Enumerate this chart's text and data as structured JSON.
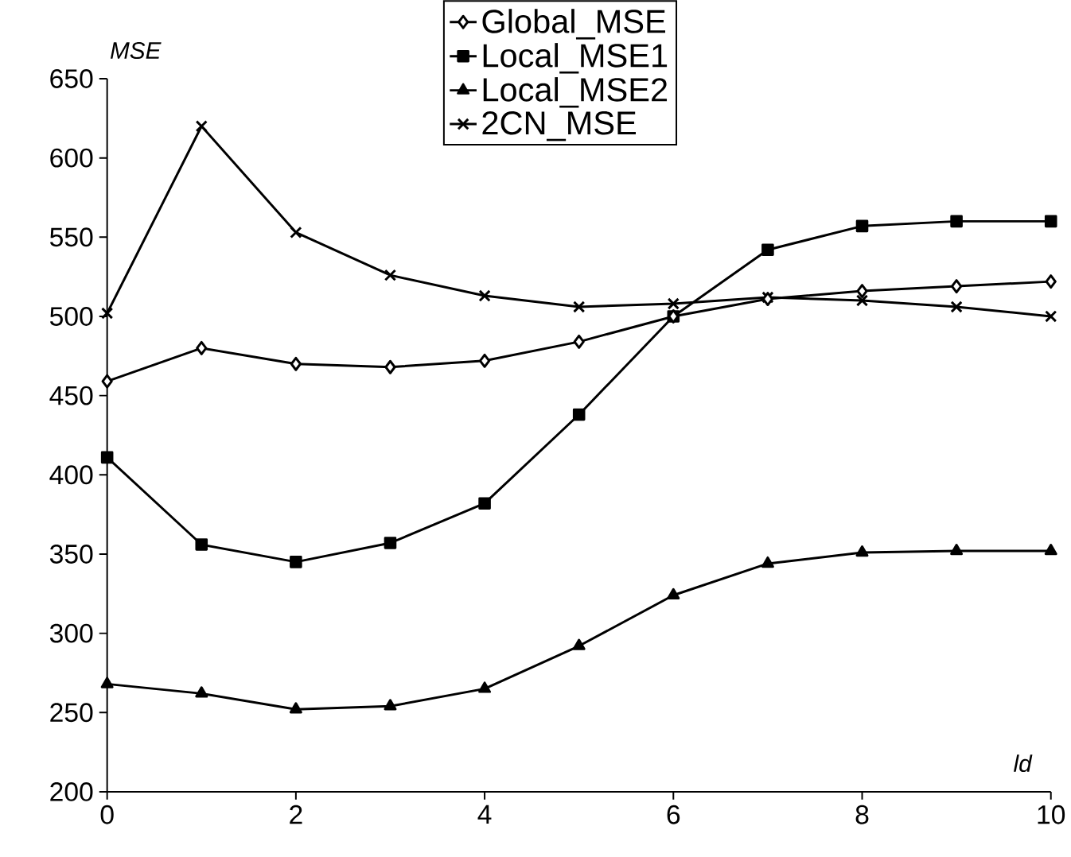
{
  "chart_data": {
    "type": "line",
    "xlabel": "ld",
    "ylabel": "MSE",
    "x": [
      0,
      1,
      2,
      3,
      4,
      5,
      6,
      7,
      8,
      9,
      10
    ],
    "xlim": [
      0,
      10
    ],
    "xticks": [
      0,
      2,
      4,
      6,
      8,
      10
    ],
    "ylim": [
      200,
      650
    ],
    "yticks": [
      200,
      250,
      300,
      350,
      400,
      450,
      500,
      550,
      600,
      650
    ],
    "grid": false,
    "legend": "top",
    "line_style": "solid",
    "series": [
      {
        "name": "Global_MSE",
        "color": "#000000",
        "marker": "diamond",
        "values": [
          459,
          480,
          470,
          468,
          472,
          484,
          500,
          511,
          516,
          519,
          522
        ]
      },
      {
        "name": "Local_MSE1",
        "color": "#000000",
        "marker": "square",
        "values": [
          411,
          356,
          345,
          357,
          382,
          438,
          500,
          542,
          557,
          560,
          560
        ]
      },
      {
        "name": "Local_MSE2",
        "color": "#000000",
        "marker": "triangle",
        "values": [
          268,
          262,
          252,
          254,
          265,
          292,
          324,
          344,
          351,
          352,
          352
        ]
      },
      {
        "name": "2CN_MSE",
        "color": "#000000",
        "marker": "cross",
        "values": [
          502,
          620,
          553,
          526,
          513,
          506,
          508,
          512,
          510,
          506,
          500
        ]
      }
    ]
  }
}
